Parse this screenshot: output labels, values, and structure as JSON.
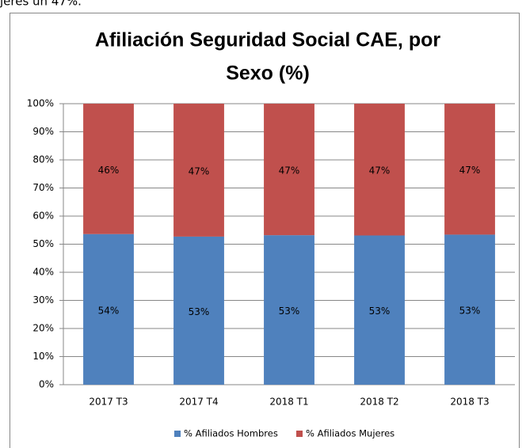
{
  "page_fragment": "jeres un 47%.",
  "chart_data": {
    "type": "stacked_bar",
    "title": [
      "Afiliación Seguridad Social CAE, por",
      "Sexo (%)"
    ],
    "categories": [
      "2017 T3",
      "2017 T4",
      "2018 T1",
      "2018 T2",
      "2018 T3"
    ],
    "series": [
      {
        "name": "% Afiliados Hombres",
        "color": "#4f81bd",
        "values": [
          53.6,
          52.7,
          53.2,
          53.1,
          53.4
        ],
        "value_labels": [
          "54%",
          "53%",
          "53%",
          "53%",
          "53%"
        ]
      },
      {
        "name": "% Afiliados Mujeres",
        "color": "#c0504d",
        "values": [
          46.4,
          47.3,
          46.8,
          46.9,
          46.6
        ],
        "value_labels": [
          "46%",
          "47%",
          "47%",
          "47%",
          "47%"
        ]
      }
    ],
    "ylim": [
      0,
      100
    ],
    "yticks": [
      {
        "value": 0,
        "label": "0%"
      },
      {
        "value": 10,
        "label": "10%"
      },
      {
        "value": 20,
        "label": "20%"
      },
      {
        "value": 30,
        "label": "30%"
      },
      {
        "value": 40,
        "label": "40%"
      },
      {
        "value": 50,
        "label": "50%"
      },
      {
        "value": 60,
        "label": "60%"
      },
      {
        "value": 70,
        "label": "70%"
      },
      {
        "value": 80,
        "label": "80%"
      },
      {
        "value": 90,
        "label": "90%"
      },
      {
        "value": 100,
        "label": "100%"
      }
    ],
    "grid": true,
    "legend": "bottom"
  }
}
